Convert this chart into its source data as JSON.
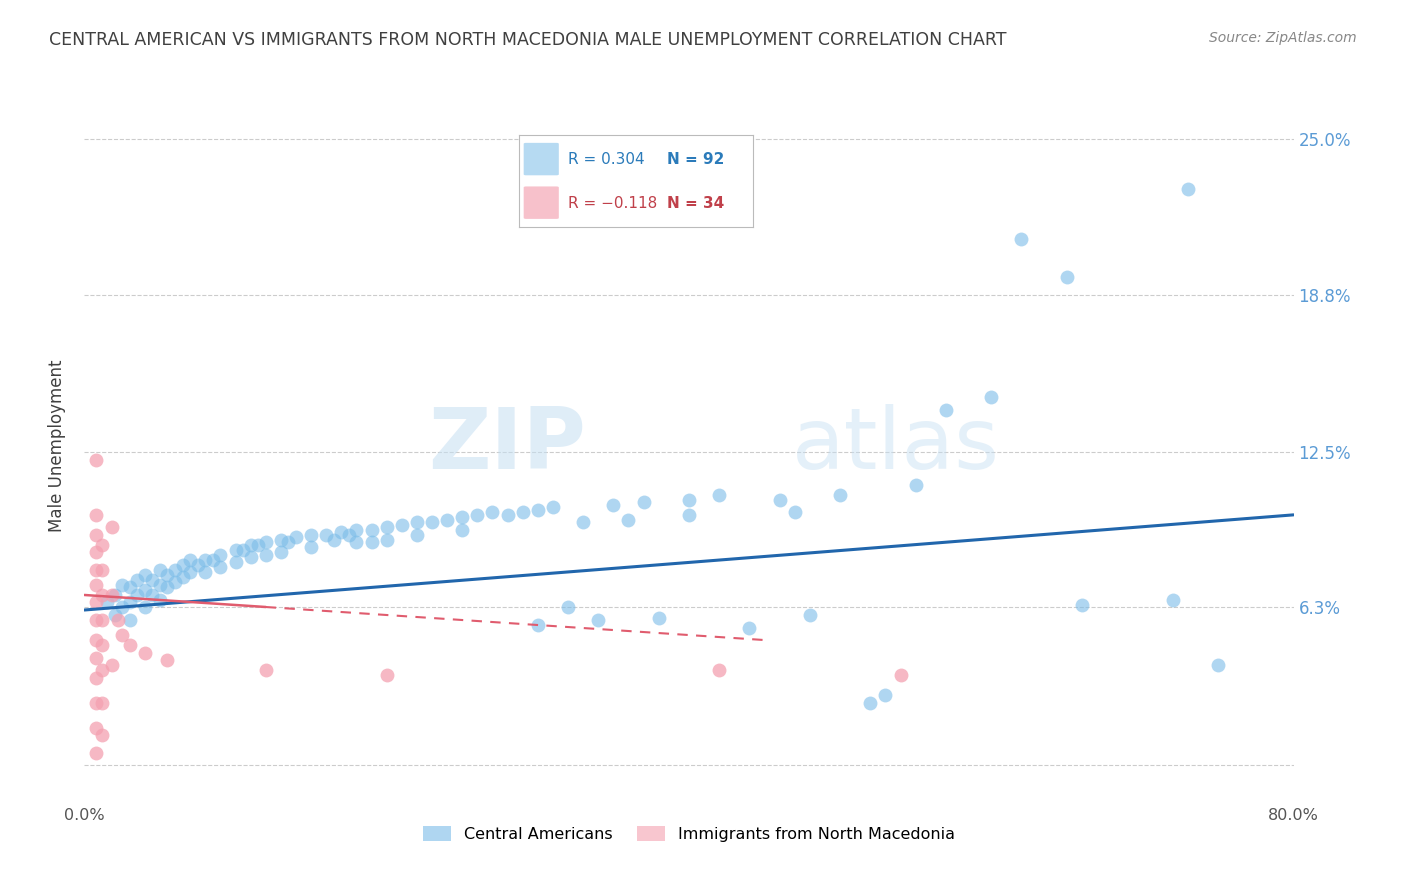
{
  "title": "CENTRAL AMERICAN VS IMMIGRANTS FROM NORTH MACEDONIA MALE UNEMPLOYMENT CORRELATION CHART",
  "source": "Source: ZipAtlas.com",
  "ylabel": "Male Unemployment",
  "xlim": [
    0.0,
    0.8
  ],
  "ylim": [
    -0.015,
    0.27
  ],
  "yticks": [
    0.0,
    0.063,
    0.125,
    0.188,
    0.25
  ],
  "ytick_labels": [
    "",
    "6.3%",
    "12.5%",
    "18.8%",
    "25.0%"
  ],
  "xticks": [
    0.0,
    0.1,
    0.2,
    0.3,
    0.4,
    0.5,
    0.6,
    0.7,
    0.8
  ],
  "xtick_labels": [
    "0.0%",
    "",
    "",
    "",
    "",
    "",
    "",
    "",
    "80.0%"
  ],
  "grid_color": "#cccccc",
  "background_color": "#ffffff",
  "watermark_zip": "ZIP",
  "watermark_atlas": "atlas",
  "blue_color": "#7bbce8",
  "pink_color": "#f4a0b0",
  "blue_line_color": "#2166ac",
  "pink_line_color": "#e05c6e",
  "title_color": "#404040",
  "right_axis_color": "#5b9bd5",
  "blue_scatter": [
    [
      0.015,
      0.065
    ],
    [
      0.02,
      0.068
    ],
    [
      0.02,
      0.06
    ],
    [
      0.025,
      0.072
    ],
    [
      0.025,
      0.063
    ],
    [
      0.03,
      0.071
    ],
    [
      0.03,
      0.065
    ],
    [
      0.03,
      0.058
    ],
    [
      0.035,
      0.074
    ],
    [
      0.035,
      0.068
    ],
    [
      0.04,
      0.076
    ],
    [
      0.04,
      0.07
    ],
    [
      0.04,
      0.063
    ],
    [
      0.045,
      0.074
    ],
    [
      0.045,
      0.068
    ],
    [
      0.05,
      0.078
    ],
    [
      0.05,
      0.072
    ],
    [
      0.05,
      0.066
    ],
    [
      0.055,
      0.076
    ],
    [
      0.055,
      0.071
    ],
    [
      0.06,
      0.078
    ],
    [
      0.06,
      0.073
    ],
    [
      0.065,
      0.08
    ],
    [
      0.065,
      0.075
    ],
    [
      0.07,
      0.082
    ],
    [
      0.07,
      0.077
    ],
    [
      0.075,
      0.08
    ],
    [
      0.08,
      0.082
    ],
    [
      0.08,
      0.077
    ],
    [
      0.085,
      0.082
    ],
    [
      0.09,
      0.084
    ],
    [
      0.09,
      0.079
    ],
    [
      0.1,
      0.086
    ],
    [
      0.1,
      0.081
    ],
    [
      0.105,
      0.086
    ],
    [
      0.11,
      0.088
    ],
    [
      0.11,
      0.083
    ],
    [
      0.115,
      0.088
    ],
    [
      0.12,
      0.089
    ],
    [
      0.12,
      0.084
    ],
    [
      0.13,
      0.09
    ],
    [
      0.13,
      0.085
    ],
    [
      0.135,
      0.089
    ],
    [
      0.14,
      0.091
    ],
    [
      0.15,
      0.092
    ],
    [
      0.15,
      0.087
    ],
    [
      0.16,
      0.092
    ],
    [
      0.165,
      0.09
    ],
    [
      0.17,
      0.093
    ],
    [
      0.175,
      0.092
    ],
    [
      0.18,
      0.094
    ],
    [
      0.18,
      0.089
    ],
    [
      0.19,
      0.094
    ],
    [
      0.19,
      0.089
    ],
    [
      0.2,
      0.095
    ],
    [
      0.2,
      0.09
    ],
    [
      0.21,
      0.096
    ],
    [
      0.22,
      0.097
    ],
    [
      0.22,
      0.092
    ],
    [
      0.23,
      0.097
    ],
    [
      0.24,
      0.098
    ],
    [
      0.25,
      0.099
    ],
    [
      0.25,
      0.094
    ],
    [
      0.26,
      0.1
    ],
    [
      0.27,
      0.101
    ],
    [
      0.28,
      0.1
    ],
    [
      0.29,
      0.101
    ],
    [
      0.3,
      0.102
    ],
    [
      0.3,
      0.056
    ],
    [
      0.31,
      0.103
    ],
    [
      0.32,
      0.063
    ],
    [
      0.33,
      0.097
    ],
    [
      0.34,
      0.058
    ],
    [
      0.35,
      0.104
    ],
    [
      0.36,
      0.098
    ],
    [
      0.37,
      0.105
    ],
    [
      0.38,
      0.059
    ],
    [
      0.4,
      0.106
    ],
    [
      0.4,
      0.1
    ],
    [
      0.42,
      0.108
    ],
    [
      0.44,
      0.055
    ],
    [
      0.46,
      0.106
    ],
    [
      0.47,
      0.101
    ],
    [
      0.48,
      0.06
    ],
    [
      0.5,
      0.108
    ],
    [
      0.52,
      0.025
    ],
    [
      0.53,
      0.028
    ],
    [
      0.55,
      0.112
    ],
    [
      0.57,
      0.142
    ],
    [
      0.6,
      0.147
    ],
    [
      0.62,
      0.21
    ],
    [
      0.65,
      0.195
    ],
    [
      0.66,
      0.064
    ],
    [
      0.72,
      0.066
    ],
    [
      0.73,
      0.23
    ],
    [
      0.75,
      0.04
    ]
  ],
  "pink_scatter": [
    [
      0.008,
      0.122
    ],
    [
      0.008,
      0.1
    ],
    [
      0.008,
      0.092
    ],
    [
      0.008,
      0.085
    ],
    [
      0.008,
      0.078
    ],
    [
      0.008,
      0.072
    ],
    [
      0.008,
      0.065
    ],
    [
      0.008,
      0.058
    ],
    [
      0.008,
      0.05
    ],
    [
      0.008,
      0.043
    ],
    [
      0.008,
      0.035
    ],
    [
      0.008,
      0.025
    ],
    [
      0.008,
      0.015
    ],
    [
      0.008,
      0.005
    ],
    [
      0.012,
      0.088
    ],
    [
      0.012,
      0.078
    ],
    [
      0.012,
      0.068
    ],
    [
      0.012,
      0.058
    ],
    [
      0.012,
      0.048
    ],
    [
      0.012,
      0.038
    ],
    [
      0.012,
      0.025
    ],
    [
      0.012,
      0.012
    ],
    [
      0.018,
      0.095
    ],
    [
      0.018,
      0.068
    ],
    [
      0.018,
      0.04
    ],
    [
      0.022,
      0.058
    ],
    [
      0.025,
      0.052
    ],
    [
      0.03,
      0.048
    ],
    [
      0.04,
      0.045
    ],
    [
      0.055,
      0.042
    ],
    [
      0.12,
      0.038
    ],
    [
      0.2,
      0.036
    ],
    [
      0.42,
      0.038
    ],
    [
      0.54,
      0.036
    ]
  ],
  "blue_trendline": [
    [
      0.0,
      0.062
    ],
    [
      0.8,
      0.1
    ]
  ],
  "pink_trendline": [
    [
      0.0,
      0.068
    ],
    [
      0.45,
      0.05
    ]
  ]
}
